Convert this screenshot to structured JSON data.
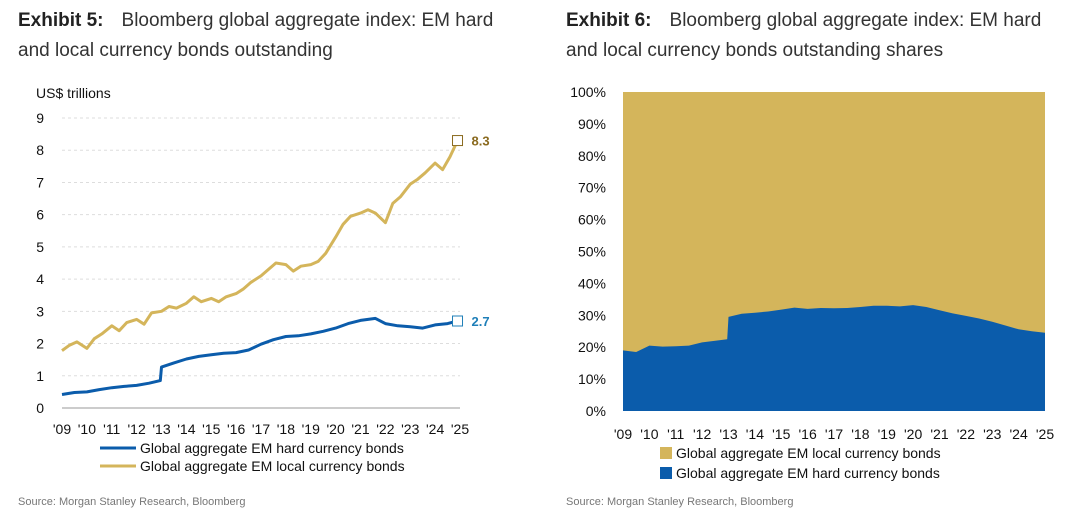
{
  "colors": {
    "local": "#D4B55B",
    "hard": "#0B5CAB",
    "gold_label": "#8A6A1F",
    "blue_label": "#1F7FB8",
    "grid": "#DDDDDD"
  },
  "left": {
    "exhibit": "Exhibit 5:",
    "title": "Bloomberg global aggregate index: EM hard and local currency bonds outstanding",
    "source": "Source: Morgan Stanley Research, Bloomberg"
  },
  "right": {
    "exhibit": "Exhibit 6:",
    "title": "Bloomberg global aggregate index: EM hard and local currency bonds outstanding shares",
    "source": "Source: Morgan Stanley Research, Bloomberg"
  },
  "chart_data": [
    {
      "type": "line",
      "ylabel": "US$ trillions",
      "ylim": [
        0,
        9
      ],
      "yticks": [
        "0",
        "1",
        "2",
        "3",
        "4",
        "5",
        "6",
        "7",
        "8",
        "9"
      ],
      "xticks": [
        "'09",
        "'10",
        "'11",
        "'12",
        "'13",
        "'14",
        "'15",
        "'16",
        "'17",
        "'18",
        "'19",
        "'20",
        "'21",
        "'22",
        "'23",
        "'24",
        "'25"
      ],
      "grid": "horizontal",
      "legend_position": "bottom",
      "series": [
        {
          "name": "Global aggregate EM hard currency bonds",
          "color": "hard",
          "end_label": "2.7",
          "x": [
            2009.0,
            2009.5,
            2010.0,
            2010.5,
            2011.0,
            2011.5,
            2012.0,
            2012.5,
            2012.95,
            2013.0,
            2013.5,
            2014.0,
            2014.5,
            2015.0,
            2015.5,
            2016.0,
            2016.5,
            2017.0,
            2017.5,
            2018.0,
            2018.5,
            2019.0,
            2019.5,
            2020.0,
            2020.5,
            2021.0,
            2021.3,
            2021.6,
            2022.0,
            2022.5,
            2023.0,
            2023.5,
            2024.0,
            2024.5,
            2024.9
          ],
          "y": [
            0.42,
            0.48,
            0.5,
            0.57,
            0.63,
            0.67,
            0.7,
            0.77,
            0.85,
            1.27,
            1.4,
            1.52,
            1.6,
            1.65,
            1.7,
            1.72,
            1.8,
            1.98,
            2.12,
            2.22,
            2.24,
            2.3,
            2.38,
            2.48,
            2.62,
            2.72,
            2.75,
            2.78,
            2.62,
            2.55,
            2.52,
            2.48,
            2.58,
            2.62,
            2.7
          ]
        },
        {
          "name": "Global aggregate EM local currency bonds",
          "color": "local",
          "end_label": "8.3",
          "x": [
            2009.0,
            2009.3,
            2009.6,
            2010.0,
            2010.3,
            2010.6,
            2011.0,
            2011.3,
            2011.6,
            2012.0,
            2012.3,
            2012.6,
            2013.0,
            2013.3,
            2013.6,
            2014.0,
            2014.3,
            2014.6,
            2015.0,
            2015.3,
            2015.6,
            2016.0,
            2016.3,
            2016.6,
            2017.0,
            2017.3,
            2017.6,
            2018.0,
            2018.3,
            2018.6,
            2019.0,
            2019.3,
            2019.6,
            2020.0,
            2020.3,
            2020.6,
            2021.0,
            2021.3,
            2021.6,
            2022.0,
            2022.3,
            2022.6,
            2023.0,
            2023.3,
            2023.6,
            2024.0,
            2024.3,
            2024.6,
            2024.9
          ],
          "y": [
            1.78,
            1.95,
            2.05,
            1.85,
            2.15,
            2.3,
            2.55,
            2.4,
            2.65,
            2.75,
            2.6,
            2.95,
            3.0,
            3.15,
            3.1,
            3.25,
            3.45,
            3.3,
            3.4,
            3.3,
            3.45,
            3.55,
            3.7,
            3.9,
            4.1,
            4.3,
            4.5,
            4.45,
            4.25,
            4.4,
            4.45,
            4.55,
            4.8,
            5.3,
            5.7,
            5.95,
            6.05,
            6.15,
            6.05,
            5.75,
            6.35,
            6.55,
            6.95,
            7.1,
            7.3,
            7.6,
            7.4,
            7.8,
            8.3
          ]
        }
      ]
    },
    {
      "type": "area",
      "ylim": [
        0,
        100
      ],
      "yticks": [
        "0%",
        "10%",
        "20%",
        "30%",
        "40%",
        "50%",
        "60%",
        "70%",
        "80%",
        "90%",
        "100%"
      ],
      "xticks": [
        "'09",
        "'10",
        "'11",
        "'12",
        "'13",
        "'14",
        "'15",
        "'16",
        "'17",
        "'18",
        "'19",
        "'20",
        "'21",
        "'22",
        "'23",
        "'24",
        "'25"
      ],
      "stacked": true,
      "legend_position": "bottom",
      "series": [
        {
          "name": "Global aggregate EM hard currency bonds",
          "color": "hard",
          "x": [
            2009.0,
            2009.5,
            2010.0,
            2010.5,
            2011.0,
            2011.5,
            2012.0,
            2012.5,
            2012.95,
            2013.0,
            2013.5,
            2014.0,
            2014.5,
            2015.0,
            2015.5,
            2016.0,
            2016.5,
            2017.0,
            2017.5,
            2018.0,
            2018.5,
            2019.0,
            2019.5,
            2020.0,
            2020.5,
            2021.0,
            2021.5,
            2022.0,
            2022.5,
            2023.0,
            2023.5,
            2024.0,
            2024.5,
            2025.0
          ],
          "y": [
            19,
            18.5,
            20.5,
            20.2,
            20.3,
            20.5,
            21.5,
            22,
            22.5,
            29.5,
            30.5,
            30.8,
            31.2,
            31.8,
            32.4,
            32,
            32.3,
            32.2,
            32.3,
            32.6,
            33,
            33,
            32.8,
            33.2,
            32.6,
            31.6,
            30.6,
            29.8,
            29,
            28,
            26.8,
            25.6,
            25,
            24.5
          ]
        },
        {
          "name": "Global aggregate EM local currency bonds",
          "color": "local",
          "fills_to": 100
        }
      ]
    }
  ]
}
